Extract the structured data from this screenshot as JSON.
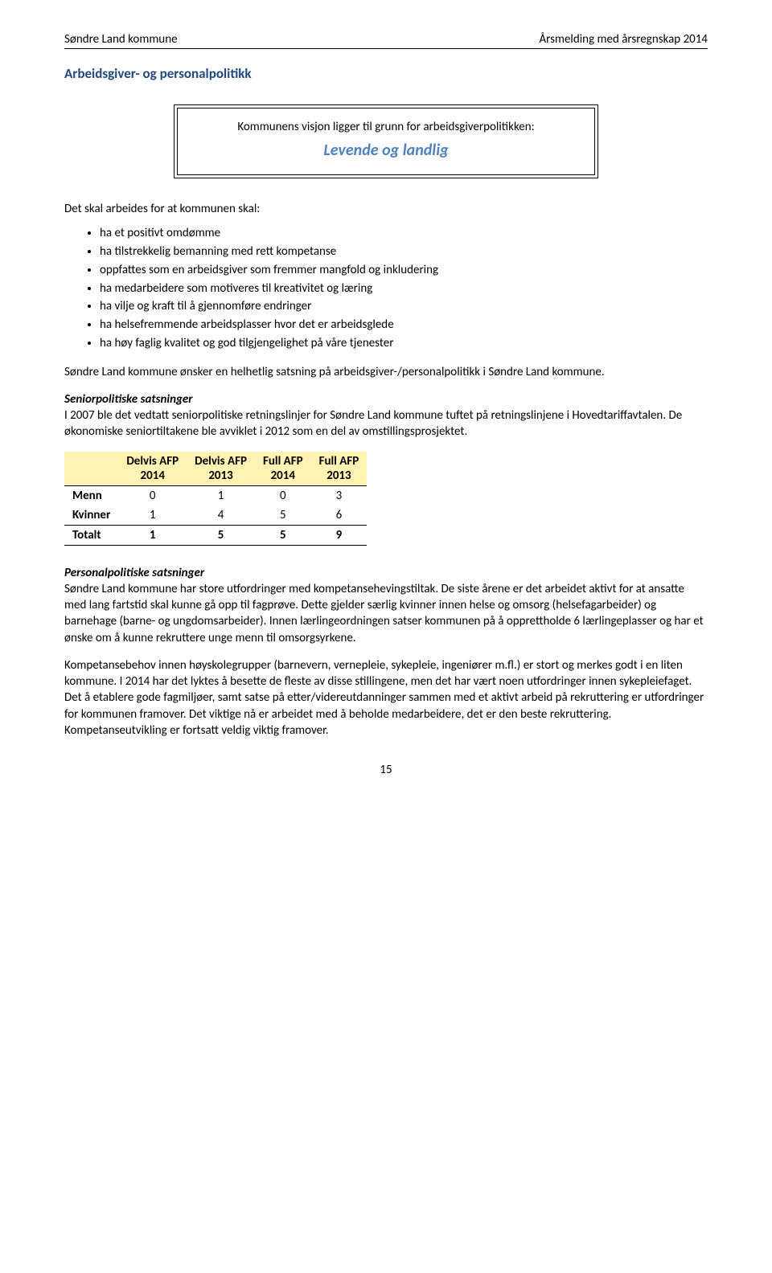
{
  "header": {
    "left": "Søndre Land kommune",
    "right": "Årsmelding med årsregnskap 2014"
  },
  "section_title": "Arbeidsgiver- og personalpolitikk",
  "vision": {
    "intro": "Kommunens visjon ligger til grunn for arbeidsgiverpolitikken:",
    "text": "Levende og landlig"
  },
  "intro_para": "Det skal arbeides for at kommunen skal:",
  "bullets": [
    "ha et positivt omdømme",
    "ha tilstrekkelig bemanning med rett kompetanse",
    "oppfattes som en arbeidsgiver som fremmer mangfold og inkludering",
    "ha medarbeidere som motiveres til kreativitet og læring",
    "ha vilje og kraft til å gjennomføre endringer",
    "ha helsefremmende arbeidsplasser hvor det er arbeidsglede",
    "ha høy faglig kvalitet og god tilgjengelighet på våre tjenester"
  ],
  "after_bullets": "Søndre Land kommune ønsker en helhetlig satsning på arbeidsgiver-/personalpolitikk i Søndre Land kommune.",
  "senior_heading": "Seniorpolitiske satsninger",
  "senior_para": "I 2007 ble det vedtatt seniorpolitiske retningslinjer for Søndre Land kommune tuftet på retningslinjene i Hovedtariffavtalen. De økonomiske seniortiltakene ble avviklet i 2012 som en del av omstillingsprosjektet.",
  "afp_table": {
    "headers": {
      "blank": "",
      "c1a": "Delvis AFP",
      "c1b": "2014",
      "c2a": "Delvis AFP",
      "c2b": "2013",
      "c3a": "Full AFP",
      "c3b": "2014",
      "c4a": "Full AFP",
      "c4b": "2013"
    },
    "rows": [
      {
        "label": "Menn",
        "c1": "0",
        "c2": "1",
        "c3": "0",
        "c4": "3"
      },
      {
        "label": "Kvinner",
        "c1": "1",
        "c2": "4",
        "c3": "5",
        "c4": "6"
      }
    ],
    "total": {
      "label": "Totalt",
      "c1": "1",
      "c2": "5",
      "c3": "5",
      "c4": "9"
    }
  },
  "personal_heading": "Personalpolitiske satsninger",
  "personal_para1": "Søndre Land kommune har store utfordringer med kompetansehevingstiltak. De siste årene er det arbeidet aktivt for at ansatte med lang fartstid skal kunne gå opp til fagprøve. Dette gjelder særlig kvinner innen helse og omsorg (helsefagarbeider) og barnehage (barne- og ungdomsarbeider). Innen lærlingeordningen satser kommunen på å opprettholde 6 lærlingeplasser og har et ønske om å kunne rekruttere unge menn til omsorgsyrkene.",
  "personal_para2": "Kompetansebehov innen høyskolegrupper (barnevern, vernepleie, sykepleie, ingeniører m.fl.) er stort og merkes godt i en liten kommune. I 2014 har det lyktes å besette de fleste av disse stillingene, men det har vært noen utfordringer innen sykepleiefaget.  Det å etablere gode fagmiljøer, samt satse på etter/videreutdanninger sammen med et aktivt arbeid på rekruttering er utfordringer for kommunen framover. Det viktige nå er arbeidet med å beholde medarbeidere, det er den beste rekruttering. Kompetanseutvikling er fortsatt veldig viktig framover.",
  "page_number": "15"
}
